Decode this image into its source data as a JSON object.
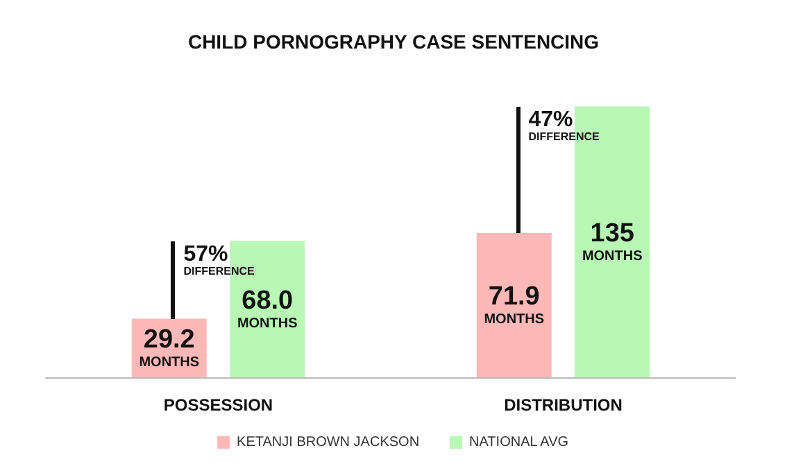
{
  "chart_data": {
    "type": "bar",
    "title": "CHILD PORNOGRAPHY CASE SENTENCING",
    "categories": [
      "POSSESSION",
      "DISTRIBUTION"
    ],
    "series": [
      {
        "name": "KETANJI BROWN JACKSON",
        "color": "#ffb8b8",
        "values": [
          29.2,
          71.9
        ],
        "value_labels": [
          "29.2 MONTHS",
          "71.9 MONTHS"
        ]
      },
      {
        "name": "NATIONAL AVG",
        "color": "#b8f7b4",
        "values": [
          68.0,
          135
        ],
        "value_labels": [
          "68.0 MONTHS",
          "135 MONTHS"
        ]
      }
    ],
    "annotations": [
      "57% DIFFERENCE",
      "47% DIFFERENCE"
    ],
    "legend": "bottom"
  }
}
